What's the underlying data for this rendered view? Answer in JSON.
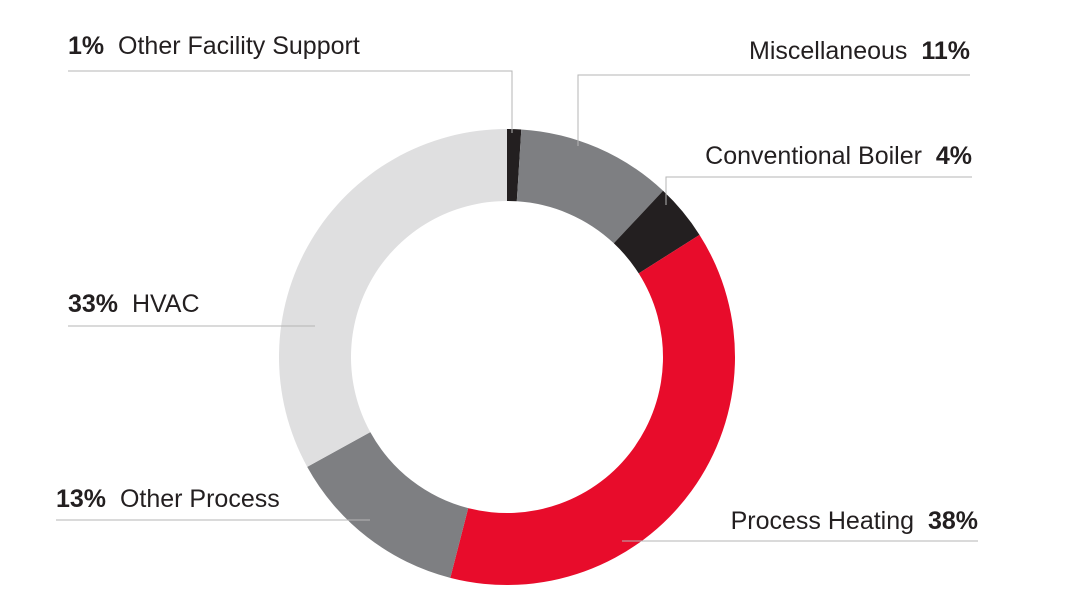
{
  "chart_data": {
    "type": "pie",
    "style": "donut",
    "title": "",
    "slices": [
      {
        "label": "Other Facility Support",
        "value": 1,
        "value_label": "1%",
        "color": "#231f20"
      },
      {
        "label": "Miscellaneous",
        "value": 11,
        "value_label": "11%",
        "color": "#7e7f82"
      },
      {
        "label": "Conventional Boiler",
        "value": 4,
        "value_label": "4%",
        "color": "#231f20"
      },
      {
        "label": "Process Heating",
        "value": 38,
        "value_label": "38%",
        "color": "#e80c2b"
      },
      {
        "label": "Other Process",
        "value": 13,
        "value_label": "13%",
        "color": "#7e7f82"
      },
      {
        "label": "HVAC",
        "value": 33,
        "value_label": "33%",
        "color": "#dfdfe0"
      }
    ],
    "legend": "none"
  }
}
